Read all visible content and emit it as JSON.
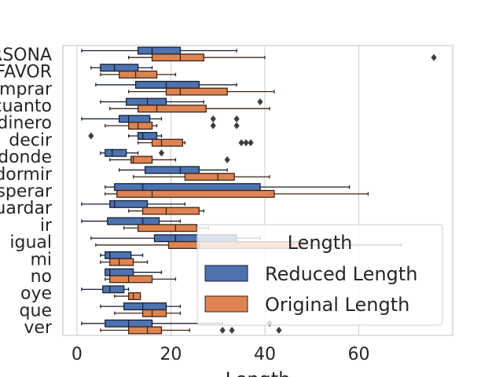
{
  "chart_data": {
    "type": "boxplot-horizontal",
    "title": "",
    "xlabel": "Length",
    "ylabel": "",
    "xlim": [
      -3,
      80
    ],
    "xticks": [
      0,
      20,
      40,
      60
    ],
    "grid": true,
    "categories": [
      "PERSONA",
      "POR FAVOR",
      "comprar",
      "cuanto",
      "dinero",
      "decir",
      "donde",
      "dormir",
      "esperar",
      "guardar",
      "ir",
      "igual",
      "mi",
      "no",
      "oye",
      "que",
      "ver"
    ],
    "legend": {
      "title": "Length",
      "placement": "lower-right",
      "entries": [
        "Reduced Length",
        "Original Length"
      ]
    },
    "series": [
      {
        "name": "Reduced Length",
        "color": "#4c72b0",
        "boxes": [
          {
            "whislo": 1,
            "q1": 13,
            "med": 16,
            "q3": 22,
            "whishi": 34,
            "fliers": []
          },
          {
            "whislo": 3,
            "q1": 5,
            "med": 8,
            "q3": 13,
            "whishi": 16,
            "fliers": []
          },
          {
            "whislo": 4,
            "q1": 12.5,
            "med": 19,
            "q3": 26,
            "whishi": 34,
            "fliers": []
          },
          {
            "whislo": 5,
            "q1": 10.5,
            "med": 15,
            "q3": 19,
            "whishi": 27,
            "fliers": [
              39
            ]
          },
          {
            "whislo": 1,
            "q1": 9,
            "med": 11,
            "q3": 15.5,
            "whishi": 18,
            "fliers": [
              29,
              34
            ]
          },
          {
            "whislo": 11,
            "q1": 13,
            "med": 14,
            "q3": 17,
            "whishi": 18,
            "fliers": [
              3
            ]
          },
          {
            "whislo": 5,
            "q1": 6,
            "med": 7.5,
            "q3": 10.5,
            "whishi": 13,
            "fliers": [
              18
            ]
          },
          {
            "whislo": 9,
            "q1": 14.5,
            "med": 22,
            "q3": 26,
            "whishi": 32,
            "fliers": []
          },
          {
            "whislo": 6,
            "q1": 8,
            "med": 14,
            "q3": 39,
            "whishi": 58,
            "fliers": []
          },
          {
            "whislo": 1,
            "q1": 7,
            "med": 8,
            "q3": 15,
            "whishi": 23,
            "fliers": []
          },
          {
            "whislo": 1,
            "q1": 6.5,
            "med": 14,
            "q3": 17.5,
            "whishi": 22,
            "fliers": []
          },
          {
            "whislo": 3,
            "q1": 16.5,
            "med": 21,
            "q3": 34,
            "whishi": 39,
            "fliers": []
          },
          {
            "whislo": 5,
            "q1": 6,
            "med": 7,
            "q3": 11.5,
            "whishi": 14,
            "fliers": []
          },
          {
            "whislo": 6,
            "q1": 6,
            "med": 7,
            "q3": 12,
            "whishi": 18,
            "fliers": []
          },
          {
            "whislo": 1,
            "q1": 5.5,
            "med": 7,
            "q3": 10,
            "whishi": 11,
            "fliers": []
          },
          {
            "whislo": 5,
            "q1": 10,
            "med": 14,
            "q3": 19,
            "whishi": 22,
            "fliers": []
          },
          {
            "whislo": 1,
            "q1": 6,
            "med": 11,
            "q3": 16,
            "whishi": 31,
            "fliers": [
              41
            ]
          }
        ]
      },
      {
        "name": "Original Length",
        "color": "#dd8452",
        "boxes": [
          {
            "whislo": 11,
            "q1": 16,
            "med": 22,
            "q3": 27,
            "whishi": 40,
            "fliers": [
              76
            ]
          },
          {
            "whislo": 5,
            "q1": 9,
            "med": 12.5,
            "q3": 17,
            "whishi": 21,
            "fliers": []
          },
          {
            "whislo": 11,
            "q1": 19,
            "med": 22,
            "q3": 32,
            "whishi": 42,
            "fliers": []
          },
          {
            "whislo": 7,
            "q1": 13,
            "med": 17,
            "q3": 27.5,
            "whishi": 41,
            "fliers": []
          },
          {
            "whislo": 6,
            "q1": 11,
            "med": 13,
            "q3": 16,
            "whishi": 17,
            "fliers": [
              29,
              34
            ]
          },
          {
            "whislo": 13,
            "q1": 16,
            "med": 18,
            "q3": 22.5,
            "whishi": 23,
            "fliers": [
              35,
              36,
              37
            ]
          },
          {
            "whislo": 7,
            "q1": 11.5,
            "med": 12,
            "q3": 16,
            "whishi": 21,
            "fliers": [
              32
            ]
          },
          {
            "whislo": 12,
            "q1": 23,
            "med": 30,
            "q3": 33.5,
            "whishi": 41,
            "fliers": []
          },
          {
            "whislo": 6,
            "q1": 8.5,
            "med": 16,
            "q3": 42,
            "whishi": 62,
            "fliers": []
          },
          {
            "whislo": 11,
            "q1": 14,
            "med": 19,
            "q3": 26,
            "whishi": 27,
            "fliers": []
          },
          {
            "whislo": 10,
            "q1": 13,
            "med": 21,
            "q3": 25.5,
            "whishi": 28,
            "fliers": []
          },
          {
            "whislo": 4,
            "q1": 19.5,
            "med": 26,
            "q3": 48,
            "whishi": 69,
            "fliers": []
          },
          {
            "whislo": 5,
            "q1": 7,
            "med": 9,
            "q3": 12,
            "whishi": 15,
            "fliers": []
          },
          {
            "whislo": 6,
            "q1": 7,
            "med": 11,
            "q3": 16,
            "whishi": 21,
            "fliers": []
          },
          {
            "whislo": 8,
            "q1": 11,
            "med": 12,
            "q3": 13.5,
            "whishi": 13.5,
            "fliers": []
          },
          {
            "whislo": 8,
            "q1": 14,
            "med": 16,
            "q3": 19,
            "whishi": 22,
            "fliers": []
          },
          {
            "whislo": 5,
            "q1": 11,
            "med": 15,
            "q3": 18,
            "whishi": 24,
            "fliers": [
              31,
              33,
              43
            ]
          }
        ]
      }
    ]
  }
}
